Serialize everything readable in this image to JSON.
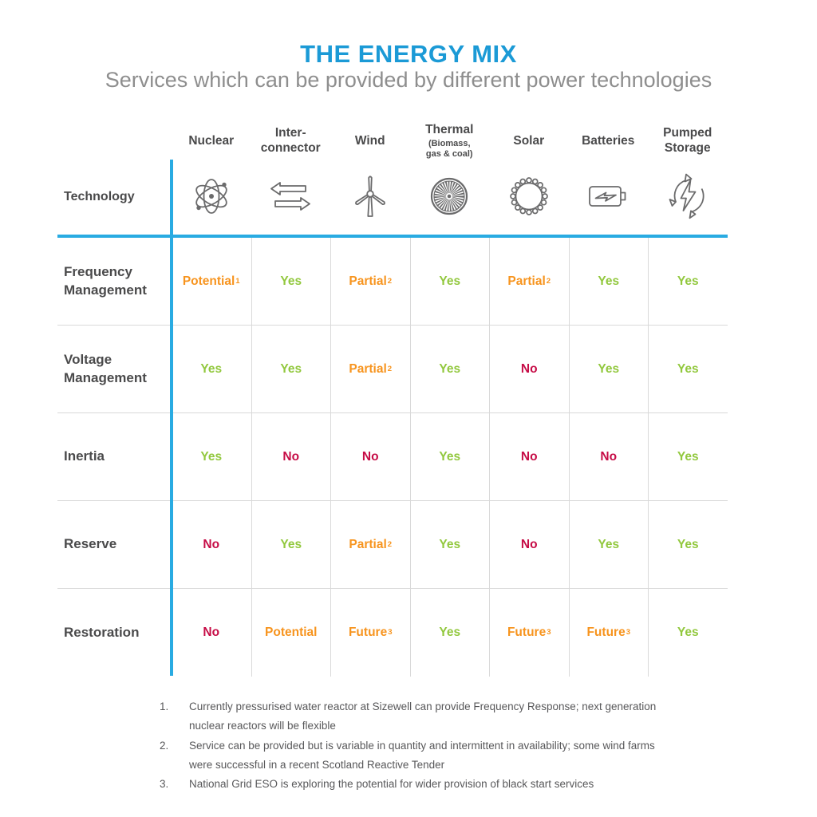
{
  "title": "THE ENERGY MIX",
  "subtitle": "Services which can be provided by different power technologies",
  "table": {
    "corner_label": "Technology",
    "columns": [
      {
        "name": "Nuclear",
        "sub": "",
        "icon": "atom-icon"
      },
      {
        "name": "Inter-\nconnector",
        "sub": "",
        "icon": "interconnector-arrows-icon"
      },
      {
        "name": "Wind",
        "sub": "",
        "icon": "wind-turbine-icon"
      },
      {
        "name": "Thermal",
        "sub": "(Biomass,\ngas & coal)",
        "icon": "turbine-fan-icon"
      },
      {
        "name": "Solar",
        "sub": "",
        "icon": "sun-icon"
      },
      {
        "name": "Batteries",
        "sub": "",
        "icon": "battery-icon"
      },
      {
        "name": "Pumped\nStorage",
        "sub": "",
        "icon": "pumped-storage-cycle-icon"
      }
    ],
    "rows": [
      {
        "label": "Frequency\nManagement",
        "cells": [
          {
            "text": "Potential",
            "sup": "1",
            "status": "potential"
          },
          {
            "text": "Yes",
            "sup": "",
            "status": "yes"
          },
          {
            "text": "Partial",
            "sup": "2",
            "status": "partial"
          },
          {
            "text": "Yes",
            "sup": "",
            "status": "yes"
          },
          {
            "text": "Partial",
            "sup": "2",
            "status": "partial"
          },
          {
            "text": "Yes",
            "sup": "",
            "status": "yes"
          },
          {
            "text": "Yes",
            "sup": "",
            "status": "yes"
          }
        ]
      },
      {
        "label": "Voltage\nManagement",
        "cells": [
          {
            "text": "Yes",
            "sup": "",
            "status": "yes"
          },
          {
            "text": "Yes",
            "sup": "",
            "status": "yes"
          },
          {
            "text": "Partial",
            "sup": "2",
            "status": "partial"
          },
          {
            "text": "Yes",
            "sup": "",
            "status": "yes"
          },
          {
            "text": "No",
            "sup": "",
            "status": "no"
          },
          {
            "text": "Yes",
            "sup": "",
            "status": "yes"
          },
          {
            "text": "Yes",
            "sup": "",
            "status": "yes"
          }
        ]
      },
      {
        "label": "Inertia",
        "cells": [
          {
            "text": "Yes",
            "sup": "",
            "status": "yes"
          },
          {
            "text": "No",
            "sup": "",
            "status": "no"
          },
          {
            "text": "No",
            "sup": "",
            "status": "no"
          },
          {
            "text": "Yes",
            "sup": "",
            "status": "yes"
          },
          {
            "text": "No",
            "sup": "",
            "status": "no"
          },
          {
            "text": "No",
            "sup": "",
            "status": "no"
          },
          {
            "text": "Yes",
            "sup": "",
            "status": "yes"
          }
        ]
      },
      {
        "label": "Reserve",
        "cells": [
          {
            "text": "No",
            "sup": "",
            "status": "no"
          },
          {
            "text": "Yes",
            "sup": "",
            "status": "yes"
          },
          {
            "text": "Partial",
            "sup": "2",
            "status": "partial"
          },
          {
            "text": "Yes",
            "sup": "",
            "status": "yes"
          },
          {
            "text": "No",
            "sup": "",
            "status": "no"
          },
          {
            "text": "Yes",
            "sup": "",
            "status": "yes"
          },
          {
            "text": "Yes",
            "sup": "",
            "status": "yes"
          }
        ]
      },
      {
        "label": "Restoration",
        "cells": [
          {
            "text": "No",
            "sup": "",
            "status": "no"
          },
          {
            "text": "Potential",
            "sup": "",
            "status": "potential"
          },
          {
            "text": "Future",
            "sup": "3",
            "status": "future"
          },
          {
            "text": "Yes",
            "sup": "",
            "status": "yes"
          },
          {
            "text": "Future",
            "sup": "3",
            "status": "future"
          },
          {
            "text": "Future",
            "sup": "3",
            "status": "future"
          },
          {
            "text": "Yes",
            "sup": "",
            "status": "yes"
          }
        ]
      }
    ]
  },
  "footnotes": [
    {
      "num": "1.",
      "text": "Currently pressurised water reactor at Sizewell can provide Frequency Response; next generation nuclear reactors will be flexible"
    },
    {
      "num": "2.",
      "text": "Service can be provided but is variable in quantity and intermittent in availability; some wind farms were successful in a recent Scotland Reactive Tender"
    },
    {
      "num": "3.",
      "text": "National Grid ESO is exploring the potential for wider provision of black start services"
    }
  ],
  "colors": {
    "title_blue": "#1B9AD6",
    "accent_cyan": "#29ABE2",
    "yes_green": "#92C83E",
    "no_red": "#C60C46",
    "caution_orange": "#F7941E",
    "heading_gray": "#4A4A4B",
    "subtitle_gray": "#8E8E8E",
    "grid_line_gray": "#D9D9D9",
    "icon_gray": "#6B6B6C"
  },
  "chart_data": {
    "type": "table",
    "title": "THE ENERGY MIX",
    "subtitle": "Services which can be provided by different power technologies",
    "columns": [
      "Nuclear",
      "Inter-connector",
      "Wind",
      "Thermal (Biomass, gas & coal)",
      "Solar",
      "Batteries",
      "Pumped Storage"
    ],
    "rows": [
      "Frequency Management",
      "Voltage Management",
      "Inertia",
      "Reserve",
      "Restoration"
    ],
    "values": [
      [
        "Potential¹",
        "Yes",
        "Partial²",
        "Yes",
        "Partial²",
        "Yes",
        "Yes"
      ],
      [
        "Yes",
        "Yes",
        "Partial²",
        "Yes",
        "No",
        "Yes",
        "Yes"
      ],
      [
        "Yes",
        "No",
        "No",
        "Yes",
        "No",
        "No",
        "Yes"
      ],
      [
        "No",
        "Yes",
        "Partial²",
        "Yes",
        "No",
        "Yes",
        "Yes"
      ],
      [
        "No",
        "Potential",
        "Future³",
        "Yes",
        "Future³",
        "Future³",
        "Yes"
      ]
    ],
    "legend": {
      "Yes": "#92C83E",
      "No": "#C60C46",
      "Partial/Potential/Future": "#F7941E"
    }
  }
}
